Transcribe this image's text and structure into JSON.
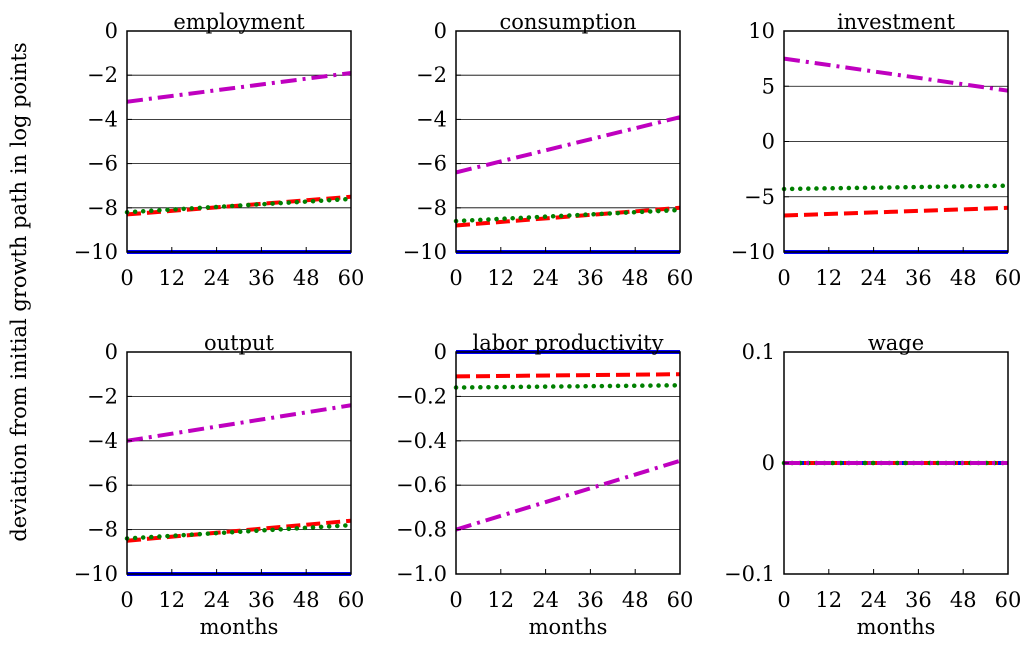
{
  "figure": {
    "ylabel": "deviation from initial growth path in log points"
  },
  "colors": {
    "blue": "#0000ff",
    "red": "#ff0000",
    "green": "#008000",
    "magenta": "#bf00bf"
  },
  "chart_data": [
    {
      "type": "line",
      "title": "employment",
      "xlabel": "",
      "x": [
        0,
        60
      ],
      "xticks": [
        0,
        12,
        24,
        36,
        48,
        60
      ],
      "xtick_labels": [
        "0",
        "12",
        "24",
        "36",
        "48",
        "60"
      ],
      "xlim": [
        0,
        60
      ],
      "ylim": [
        -10,
        0
      ],
      "yticks": [
        -10,
        -8,
        -6,
        -4,
        -2,
        0
      ],
      "ytick_labels": [
        "−10",
        "−8",
        "−6",
        "−4",
        "−2",
        "0"
      ],
      "grid": "horizontal",
      "series": [
        {
          "style": "solid",
          "color": "blue",
          "y": [
            -10,
            -10
          ]
        },
        {
          "style": "dashed",
          "color": "red",
          "y": [
            -8.3,
            -7.5
          ]
        },
        {
          "style": "dotted",
          "color": "green",
          "y": [
            -8.2,
            -7.6
          ]
        },
        {
          "style": "dashdot",
          "color": "magenta",
          "y": [
            -3.2,
            -1.9
          ]
        }
      ]
    },
    {
      "type": "line",
      "title": "consumption",
      "xlabel": "",
      "x": [
        0,
        60
      ],
      "xticks": [
        0,
        12,
        24,
        36,
        48,
        60
      ],
      "xtick_labels": [
        "0",
        "12",
        "24",
        "36",
        "48",
        "60"
      ],
      "xlim": [
        0,
        60
      ],
      "ylim": [
        -10,
        0
      ],
      "yticks": [
        -10,
        -8,
        -6,
        -4,
        -2,
        0
      ],
      "ytick_labels": [
        "−10",
        "−8",
        "−6",
        "−4",
        "−2",
        "0"
      ],
      "grid": "horizontal",
      "series": [
        {
          "style": "solid",
          "color": "blue",
          "y": [
            -10,
            -10
          ]
        },
        {
          "style": "dashed",
          "color": "red",
          "y": [
            -8.8,
            -8.0
          ]
        },
        {
          "style": "dotted",
          "color": "green",
          "y": [
            -8.6,
            -8.1
          ]
        },
        {
          "style": "dashdot",
          "color": "magenta",
          "y": [
            -6.4,
            -3.9
          ]
        }
      ]
    },
    {
      "type": "line",
      "title": "investment",
      "xlabel": "",
      "x": [
        0,
        60
      ],
      "xticks": [
        0,
        12,
        24,
        36,
        48,
        60
      ],
      "xtick_labels": [
        "0",
        "12",
        "24",
        "36",
        "48",
        "60"
      ],
      "xlim": [
        0,
        60
      ],
      "ylim": [
        -10,
        10
      ],
      "yticks": [
        -10,
        -5,
        0,
        5,
        10
      ],
      "ytick_labels": [
        "−10",
        "−5",
        "0",
        "5",
        "10"
      ],
      "grid": "horizontal",
      "series": [
        {
          "style": "solid",
          "color": "blue",
          "y": [
            -10,
            -10
          ]
        },
        {
          "style": "dashed",
          "color": "red",
          "y": [
            -6.7,
            -6.0
          ]
        },
        {
          "style": "dotted",
          "color": "green",
          "y": [
            -4.3,
            -4.0
          ]
        },
        {
          "style": "dashdot",
          "color": "magenta",
          "y": [
            7.5,
            4.6
          ]
        }
      ]
    },
    {
      "type": "line",
      "title": "output",
      "xlabel": "months",
      "x": [
        0,
        60
      ],
      "xticks": [
        0,
        12,
        24,
        36,
        48,
        60
      ],
      "xtick_labels": [
        "0",
        "12",
        "24",
        "36",
        "48",
        "60"
      ],
      "xlim": [
        0,
        60
      ],
      "ylim": [
        -10,
        0
      ],
      "yticks": [
        -10,
        -8,
        -6,
        -4,
        -2,
        0
      ],
      "ytick_labels": [
        "−10",
        "−8",
        "−6",
        "−4",
        "−2",
        "0"
      ],
      "grid": "horizontal",
      "series": [
        {
          "style": "solid",
          "color": "blue",
          "y": [
            -10,
            -10
          ]
        },
        {
          "style": "dashed",
          "color": "red",
          "y": [
            -8.5,
            -7.6
          ]
        },
        {
          "style": "dotted",
          "color": "green",
          "y": [
            -8.4,
            -7.8
          ]
        },
        {
          "style": "dashdot",
          "color": "magenta",
          "y": [
            -4.0,
            -2.4
          ]
        }
      ]
    },
    {
      "type": "line",
      "title": "labor productivity",
      "xlabel": "months",
      "x": [
        0,
        60
      ],
      "xticks": [
        0,
        12,
        24,
        36,
        48,
        60
      ],
      "xtick_labels": [
        "0",
        "12",
        "24",
        "36",
        "48",
        "60"
      ],
      "xlim": [
        0,
        60
      ],
      "ylim": [
        -1.0,
        0
      ],
      "yticks": [
        -1.0,
        -0.8,
        -0.6,
        -0.4,
        -0.2,
        0
      ],
      "ytick_labels": [
        "−1.0",
        "−0.8",
        "−0.6",
        "−0.4",
        "−0.2",
        "0"
      ],
      "grid": "horizontal",
      "series": [
        {
          "style": "solid",
          "color": "blue",
          "y": [
            0,
            0
          ]
        },
        {
          "style": "dashed",
          "color": "red",
          "y": [
            -0.11,
            -0.1
          ]
        },
        {
          "style": "dotted",
          "color": "green",
          "y": [
            -0.16,
            -0.15
          ]
        },
        {
          "style": "dashdot",
          "color": "magenta",
          "y": [
            -0.8,
            -0.49
          ]
        }
      ]
    },
    {
      "type": "line",
      "title": "wage",
      "xlabel": "months",
      "x": [
        0,
        60
      ],
      "xticks": [
        0,
        12,
        24,
        36,
        48,
        60
      ],
      "xtick_labels": [
        "0",
        "12",
        "24",
        "36",
        "48",
        "60"
      ],
      "xlim": [
        0,
        60
      ],
      "ylim": [
        -0.1,
        0.1
      ],
      "yticks": [
        -0.1,
        0,
        0.1
      ],
      "ytick_labels": [
        "−0.1",
        "0",
        "0.1"
      ],
      "grid": "horizontal",
      "series": [
        {
          "style": "solid",
          "color": "blue",
          "y": [
            0,
            0
          ]
        },
        {
          "style": "dashed",
          "color": "red",
          "y": [
            0,
            0
          ]
        },
        {
          "style": "dotted",
          "color": "green",
          "y": [
            0,
            0
          ]
        },
        {
          "style": "dashdot",
          "color": "magenta",
          "y": [
            0,
            0
          ]
        }
      ]
    }
  ]
}
